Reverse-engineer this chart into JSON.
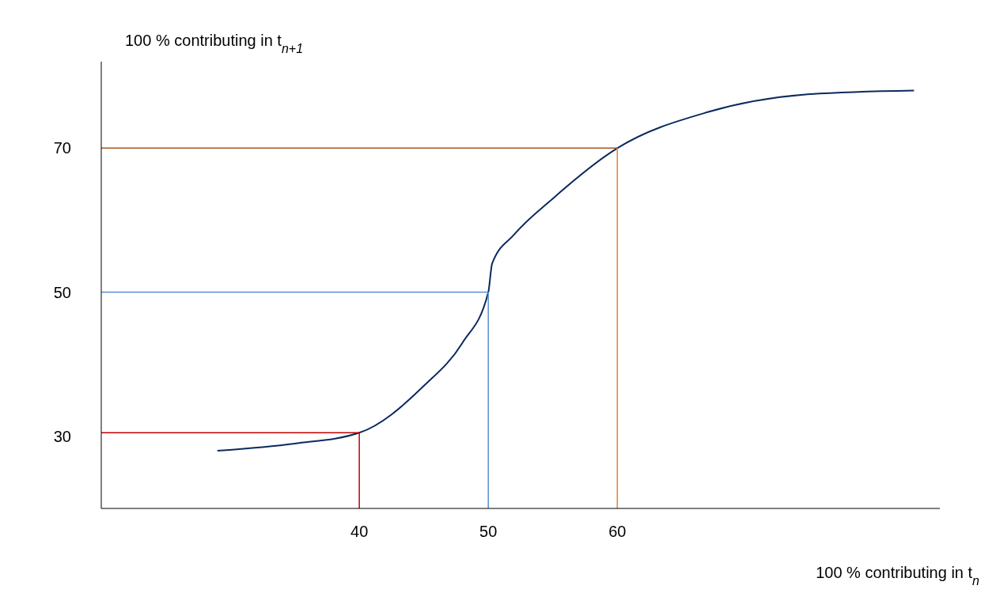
{
  "chart_data": {
    "type": "line",
    "xlabel": "100 % contributing in t$_{n}$",
    "ylabel": "100 % contributing in t$_{n+1}$",
    "xlim": [
      20,
      85
    ],
    "ylim": [
      20,
      82
    ],
    "xticks": [
      40,
      50,
      60
    ],
    "yticks": [
      30,
      50,
      70
    ],
    "marker": "none",
    "line_style": "solid",
    "series": [
      {
        "color": "#0b2a5e",
        "x": [
          29,
          35,
          40,
          45,
          48,
          50,
          50.3,
          52,
          55,
          60,
          67,
          75,
          83
        ],
        "values": [
          28,
          29,
          30.5,
          37,
          43,
          50,
          54,
          58,
          63,
          70,
          75,
          77.5,
          78
        ]
      }
    ],
    "ref_lines": [
      {
        "axis": "y",
        "value": 30.5,
        "color": "#c00000"
      },
      {
        "axis": "x",
        "value": 40,
        "color": "#c00000"
      },
      {
        "axis": "y",
        "value": 50,
        "color": "#5b8fd0"
      },
      {
        "axis": "x",
        "value": 50,
        "color": "#5b8fd0"
      },
      {
        "axis": "y",
        "value": 70,
        "color": "#a5561f"
      },
      {
        "axis": "x",
        "value": 60,
        "color": "#ed7d31"
      }
    ]
  }
}
